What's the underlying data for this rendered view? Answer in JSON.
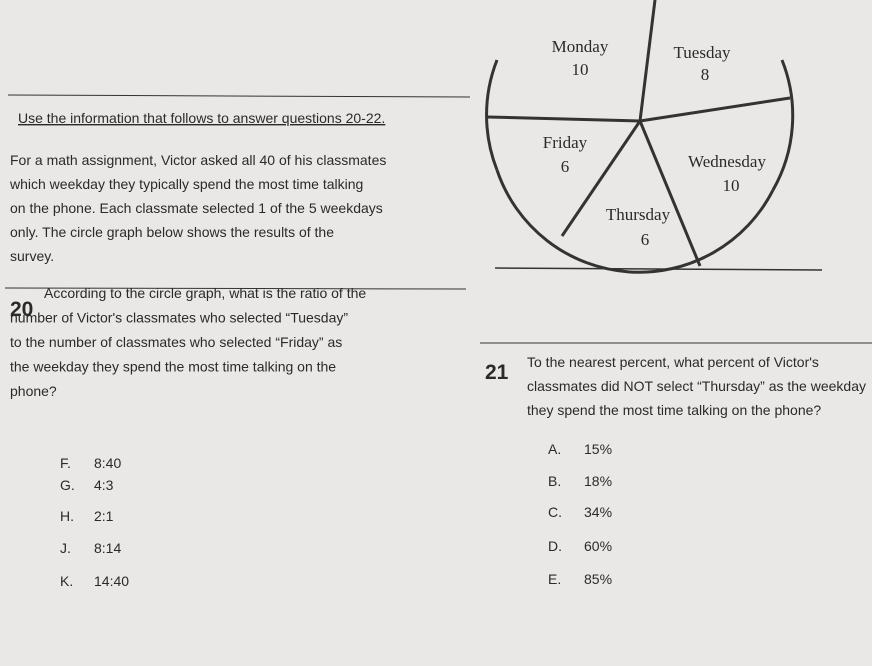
{
  "intro": {
    "instruction": "Use the information that follows to answer questions 20-22.",
    "paragraph": [
      "For a math assignment, Victor asked all 40 of his classmates",
      "which weekday they typically spend the most time talking",
      "on the phone. Each classmate selected 1 of the 5 weekdays",
      "only. The circle graph below shows the results of the",
      "survey."
    ]
  },
  "graph": {
    "slices": [
      {
        "label": "Monday",
        "value": "10"
      },
      {
        "label": "Tuesday",
        "value": "8"
      },
      {
        "label": "Friday",
        "value": "6"
      },
      {
        "label": "Wednesday",
        "value": "10"
      },
      {
        "label": "Thursday",
        "value": "6"
      }
    ]
  },
  "questions": [
    {
      "number": "20",
      "text": [
        "According to the circle graph, what is the ratio of the",
        "number of Victor's classmates who selected “Tuesday”",
        "to the number of classmates who selected “Friday” as",
        "the weekday they spend the most time talking on the",
        "phone?"
      ],
      "choices": [
        {
          "letter": "F.",
          "text": "8:40"
        },
        {
          "letter": "G.",
          "text": "4:3"
        },
        {
          "letter": "H.",
          "text": "2:1"
        },
        {
          "letter": "J.",
          "text": "8:14"
        },
        {
          "letter": "K.",
          "text": "14:40"
        }
      ]
    },
    {
      "number": "21",
      "text": [
        "To the nearest percent, what percent of Victor's",
        "classmates did NOT select “Thursday” as the weekday",
        "they spend the most time talking on the phone?"
      ],
      "choices": [
        {
          "letter": "A.",
          "text": "15%"
        },
        {
          "letter": "B.",
          "text": "18%"
        },
        {
          "letter": "C.",
          "text": "34%"
        },
        {
          "letter": "D.",
          "text": "60%"
        },
        {
          "letter": "E.",
          "text": "85%"
        }
      ]
    }
  ]
}
